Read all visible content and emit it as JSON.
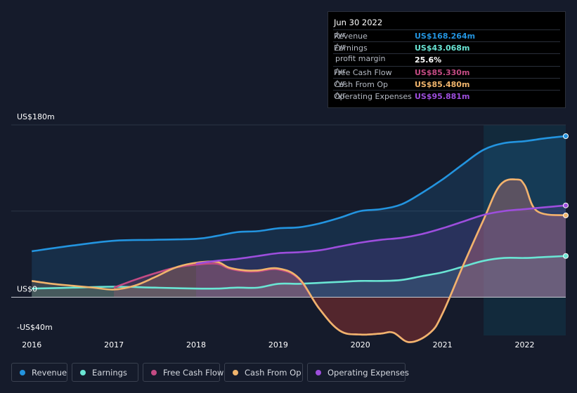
{
  "tooltip": {
    "date": "Jun 30 2022",
    "rows": [
      {
        "label": "Revenue",
        "value": "US$168.264m",
        "unit": "/yr",
        "color": "#2394df"
      },
      {
        "label": "Earnings",
        "value": "US$43.068m",
        "unit": "/yr",
        "color": "#6ae5d4"
      },
      {
        "label": "",
        "value": "25.6%",
        "unit": "profit margin",
        "color": "#ffffff"
      },
      {
        "label": "Free Cash Flow",
        "value": "US$85.330m",
        "unit": "/yr",
        "color": "#c44b84"
      },
      {
        "label": "Cash From Op",
        "value": "US$85.480m",
        "unit": "/yr",
        "color": "#f0b46c"
      },
      {
        "label": "Operating Expenses",
        "value": "US$95.881m",
        "unit": "/yr",
        "color": "#9d4edd"
      }
    ]
  },
  "legend": [
    {
      "label": "Revenue",
      "color": "#2394df"
    },
    {
      "label": "Earnings",
      "color": "#6ae5d4"
    },
    {
      "label": "Free Cash Flow",
      "color": "#c44b84"
    },
    {
      "label": "Cash From Op",
      "color": "#f0b46c"
    },
    {
      "label": "Operating Expenses",
      "color": "#9d4edd"
    }
  ],
  "chart_data": {
    "type": "area",
    "y_tick_labels": [
      "US$180m",
      "US$0",
      "-US$40m"
    ],
    "ylim": [
      -40,
      180
    ],
    "x_tick_labels": [
      "2016",
      "2017",
      "2018",
      "2019",
      "2020",
      "2021",
      "2022"
    ],
    "xlim": [
      2015.75,
      2022.5
    ],
    "highlight_from": 2021.5,
    "series": [
      {
        "name": "Revenue",
        "color": "#2394df",
        "x": [
          2016.0,
          2016.5,
          2017.0,
          2017.5,
          2018.0,
          2018.25,
          2018.5,
          2018.75,
          2019.0,
          2019.25,
          2019.5,
          2019.75,
          2020.0,
          2020.25,
          2020.5,
          2020.75,
          2021.0,
          2021.25,
          2021.5,
          2021.75,
          2022.0,
          2022.25,
          2022.5
        ],
        "y": [
          48,
          54,
          59,
          60,
          61,
          64,
          68,
          69,
          72,
          73,
          77,
          83,
          90,
          92,
          97,
          109,
          123,
          139,
          154,
          161,
          163,
          166,
          168.264
        ]
      },
      {
        "name": "Earnings",
        "color": "#6ae5d4",
        "x": [
          2016.0,
          2016.5,
          2017.0,
          2017.5,
          2018.0,
          2018.25,
          2018.5,
          2018.75,
          2019.0,
          2019.25,
          2019.5,
          2019.75,
          2020.0,
          2020.25,
          2020.5,
          2020.75,
          2021.0,
          2021.25,
          2021.5,
          2021.75,
          2022.0,
          2022.25,
          2022.5
        ],
        "y": [
          9,
          10,
          11,
          10,
          9,
          9,
          10,
          10,
          14,
          14,
          15,
          16,
          17,
          17,
          18,
          22,
          26,
          32,
          38,
          41,
          41,
          42,
          43.068
        ]
      },
      {
        "name": "Free Cash Flow",
        "color": "#c44b84",
        "x": [
          2017.0,
          2017.25,
          2017.5,
          2017.75,
          2018.0,
          2018.25,
          2018.4,
          2018.6,
          2018.75,
          2019.0,
          2019.25,
          2019.5,
          2019.75,
          2020.0,
          2020.25,
          2020.4,
          2020.6,
          2020.85,
          2021.0,
          2021.25,
          2021.5,
          2021.7,
          2021.9,
          2022.0,
          2022.15,
          2022.5
        ],
        "y": [
          10,
          18,
          25,
          31,
          34,
          35,
          30,
          27,
          27,
          29,
          19,
          -12,
          -35,
          -39,
          -38,
          -37,
          -47,
          -37,
          -17,
          33,
          81,
          117,
          123,
          117,
          90,
          85.33
        ]
      },
      {
        "name": "Cash From Op",
        "color": "#f0b46c",
        "x": [
          2016.0,
          2016.25,
          2016.5,
          2016.75,
          2017.0,
          2017.25,
          2017.5,
          2017.75,
          2018.0,
          2018.25,
          2018.4,
          2018.6,
          2018.75,
          2019.0,
          2019.25,
          2019.5,
          2019.75,
          2020.0,
          2020.25,
          2020.4,
          2020.6,
          2020.85,
          2021.0,
          2021.25,
          2021.5,
          2021.7,
          2021.9,
          2022.0,
          2022.15,
          2022.5
        ],
        "y": [
          17,
          14,
          12,
          10,
          8,
          12,
          21,
          31,
          36,
          37,
          31,
          28,
          28,
          30,
          20,
          -12,
          -35,
          -39,
          -38,
          -37,
          -47,
          -37,
          -17,
          33,
          81,
          117,
          123,
          117,
          90,
          85.48
        ]
      },
      {
        "name": "Operating Expenses",
        "color": "#9d4edd",
        "x": [
          2018.0,
          2018.25,
          2018.5,
          2018.75,
          2019.0,
          2019.25,
          2019.5,
          2019.75,
          2020.0,
          2020.25,
          2020.5,
          2020.75,
          2021.0,
          2021.25,
          2021.5,
          2021.75,
          2022.0,
          2022.25,
          2022.5
        ],
        "y": [
          35,
          38,
          40,
          43,
          46,
          47,
          49,
          53,
          57,
          60,
          62,
          66,
          72,
          79,
          86,
          90,
          92,
          94,
          95.881
        ]
      }
    ]
  }
}
